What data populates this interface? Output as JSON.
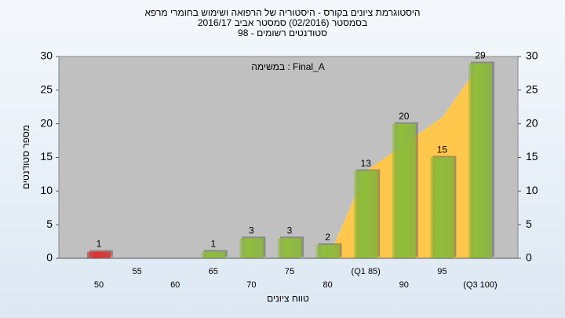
{
  "chart_data": {
    "type": "bar",
    "title": [
      "היסטוגרמת ציונים בקורס - היסטוריה של הרפואה ושימוש בחומרי מרפא",
      "בסמסטר  (02/2016)  סמסטר אביב 2016/17",
      "סטודנטים רשומים - 98"
    ],
    "annotation": "במשימה : Final_A",
    "x_label": "טווח ציונים",
    "y_label": "מספר סטודנטים",
    "categories": [
      "50",
      "55",
      "60",
      "65",
      "70",
      "75",
      "80",
      "(Q1 85)",
      "90",
      "95",
      "(Q3 100)"
    ],
    "values": [
      1,
      0,
      0,
      1,
      3,
      3,
      2,
      13,
      20,
      15,
      29
    ],
    "colors": [
      "#e03030",
      "#8fbf3a",
      "#8fbf3a",
      "#8fbf3a",
      "#8fbf3a",
      "#8fbf3a",
      "#8fbf3a",
      "#8fbf3a",
      "#8fbf3a",
      "#8fbf3a",
      "#8fbf3a"
    ],
    "area": {
      "color": "#ffc84d",
      "values": [
        null,
        null,
        null,
        null,
        null,
        null,
        0,
        13,
        17,
        21,
        29
      ]
    },
    "ylim": [
      0,
      30
    ],
    "yticks": [
      0,
      5,
      10,
      15,
      20,
      25,
      30
    ],
    "grid": false
  }
}
